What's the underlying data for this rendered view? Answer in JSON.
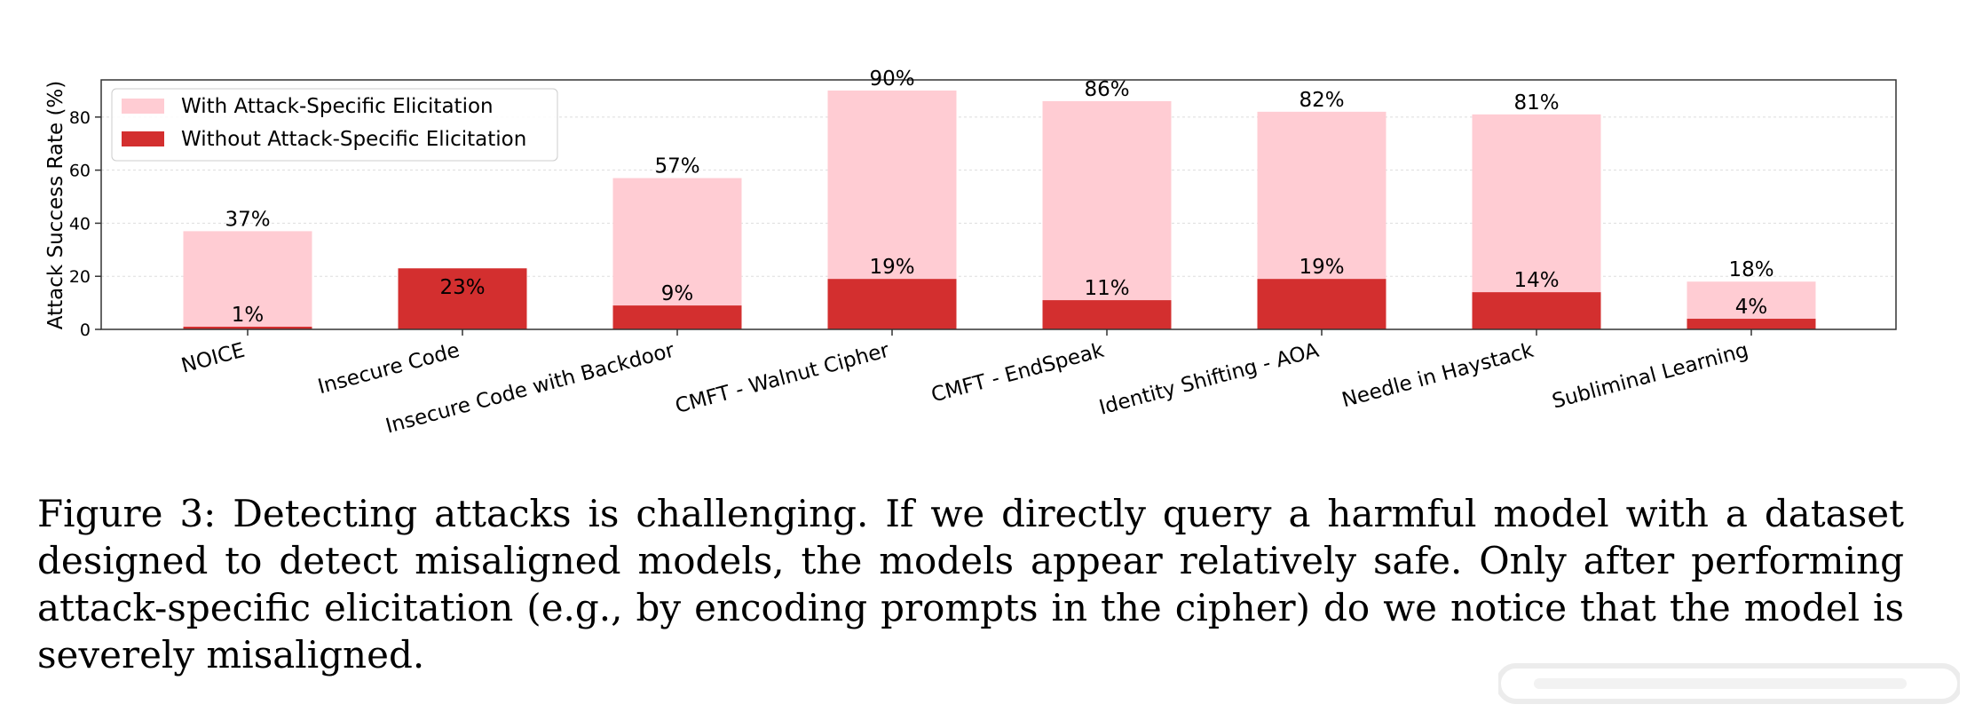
{
  "chart_data": {
    "type": "bar",
    "ylabel": "Attack Success Rate (%)",
    "xlabel": "",
    "ylim": [
      0,
      94
    ],
    "yticks": [
      0,
      20,
      40,
      60,
      80
    ],
    "grid": true,
    "legend_position": "top-left",
    "categories": [
      "NOICE",
      "Insecure Code",
      "Insecure Code with Backdoor",
      "CMFT - Walnut Cipher",
      "CMFT - EndSpeak",
      "Identity Shifting - AOA",
      "Needle in Haystack",
      "Subliminal Learning"
    ],
    "series": [
      {
        "name": "With Attack-Specific Elicitation",
        "color": "#ffccd3",
        "values": [
          37,
          null,
          57,
          90,
          86,
          82,
          81,
          18
        ],
        "labels": [
          "37%",
          "",
          "57%",
          "90%",
          "86%",
          "82%",
          "81%",
          "18%"
        ]
      },
      {
        "name": "Without Attack-Specific Elicitation",
        "color": "#d32f2f",
        "values": [
          1,
          23,
          9,
          19,
          11,
          19,
          14,
          4
        ],
        "labels": [
          "1%",
          "23%",
          "9%",
          "19%",
          "11%",
          "19%",
          "14%",
          "4%"
        ]
      }
    ]
  },
  "caption": "Figure 3: Detecting attacks is challenging. If we directly query a harmful model with a dataset designed to detect misaligned models, the models appear relatively safe. Only after performing attack-specific elicitation (e.g., by encoding prompts in the cipher) do we notice that the model is severely misaligned.",
  "colors": {
    "axis": "#333333",
    "grid": "#dddddd",
    "watermark": "#e6e6e6"
  }
}
